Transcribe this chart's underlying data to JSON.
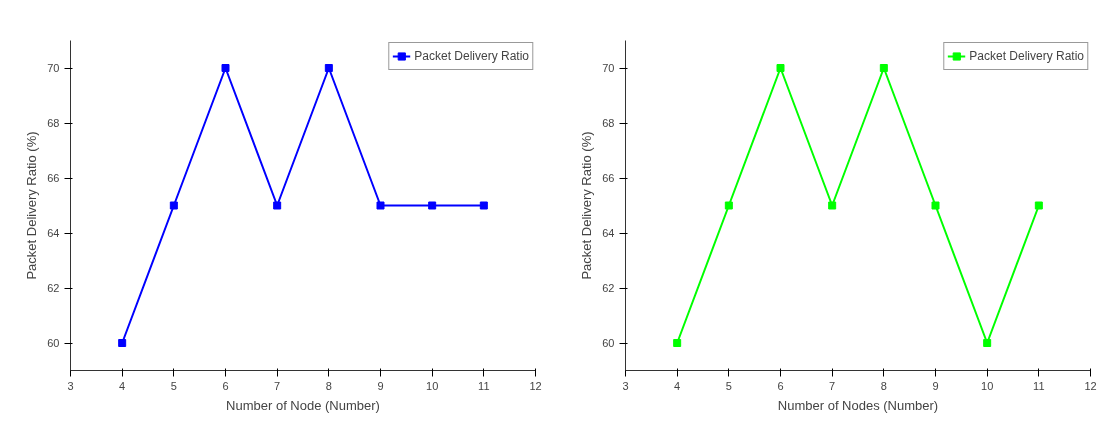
{
  "chart_data": [
    {
      "type": "line",
      "xlabel": "Number of Node (Number)",
      "ylabel": "Packet Delivery Ratio (%)",
      "x": [
        4,
        5,
        6,
        7,
        8,
        9,
        10,
        11
      ],
      "series": [
        {
          "name": "Packet Delivery Ratio",
          "color": "#0000ff",
          "values": [
            60,
            65,
            70,
            65,
            70,
            65,
            65,
            65
          ]
        }
      ],
      "xlim": [
        3,
        12
      ],
      "xticks": [
        3,
        4,
        5,
        6,
        7,
        8,
        9,
        10,
        11,
        12
      ],
      "ylim": [
        59,
        71
      ],
      "yticks": [
        60,
        62,
        64,
        66,
        68,
        70
      ],
      "grid": false,
      "legend": "top right",
      "marker": "square",
      "line_style": "solid"
    },
    {
      "type": "line",
      "xlabel": "Number of Nodes (Number)",
      "ylabel": "Packet Delivery Ratio (%)",
      "x": [
        4,
        5,
        6,
        7,
        8,
        9,
        10,
        11
      ],
      "series": [
        {
          "name": "Packet Delivery Ratio",
          "color": "#00ff00",
          "values": [
            60,
            65,
            70,
            65,
            70,
            65,
            60,
            65
          ]
        }
      ],
      "xlim": [
        3,
        12
      ],
      "xticks": [
        3,
        4,
        5,
        6,
        7,
        8,
        9,
        10,
        11,
        12
      ],
      "ylim": [
        59,
        71
      ],
      "yticks": [
        60,
        62,
        64,
        66,
        68,
        70
      ],
      "grid": false,
      "legend": "top right",
      "marker": "square",
      "line_style": "solid"
    }
  ]
}
